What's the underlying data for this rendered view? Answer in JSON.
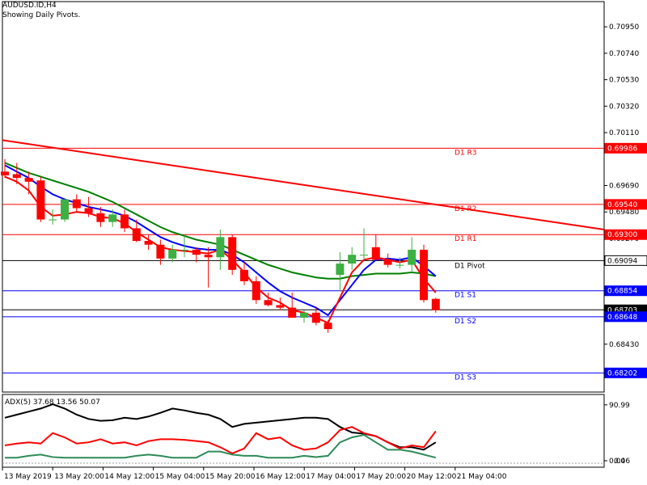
{
  "header": {
    "symbol": "AUDUSD.ID,H4",
    "subtitle": "Showing Daily Pivots."
  },
  "colors": {
    "bull": "#3cb043",
    "bear": "#ff0000",
    "ma_fast": "#ff0000",
    "ma_mid": "#0000ff",
    "ma_slow": "#008000",
    "pivot_resistance": "#ff0000",
    "pivot_support": "#0000ff",
    "pivot_center": "#000000",
    "trendline": "#ff0000",
    "adx_main": "#000000",
    "adx_plus": "#ff0000",
    "adx_minus": "#2e8b57"
  },
  "chart_data": [
    {
      "type": "candlestick",
      "price_axis": {
        "range": [
          0.6805,
          0.7115
        ],
        "ticks": [
          "0.70950",
          "0.70740",
          "0.70530",
          "0.70320",
          "0.70110",
          "0.69690",
          "0.69480",
          "0.69270",
          "0.68430"
        ]
      },
      "time_axis": {
        "labels": [
          "13 May 2019",
          "13 May 20:00",
          "14 May 12:00",
          "15 May 04:00",
          "15 May 20:00",
          "16 May 12:00",
          "17 May 04:00",
          "17 May 20:00",
          "20 May 12:00",
          "21 May 04:00"
        ]
      },
      "candles": [
        {
          "o": 0.698,
          "h": 0.699,
          "l": 0.6975,
          "c": 0.6977
        },
        {
          "o": 0.6978,
          "h": 0.6987,
          "l": 0.697,
          "c": 0.6975
        },
        {
          "o": 0.6975,
          "h": 0.698,
          "l": 0.6962,
          "c": 0.6972
        },
        {
          "o": 0.6973,
          "h": 0.6976,
          "l": 0.694,
          "c": 0.6942
        },
        {
          "o": 0.6942,
          "h": 0.695,
          "l": 0.6938,
          "c": 0.6942
        },
        {
          "o": 0.6942,
          "h": 0.6958,
          "l": 0.694,
          "c": 0.6958
        },
        {
          "o": 0.6958,
          "h": 0.6962,
          "l": 0.6948,
          "c": 0.6951
        },
        {
          "o": 0.6951,
          "h": 0.696,
          "l": 0.6944,
          "c": 0.6947
        },
        {
          "o": 0.6947,
          "h": 0.6952,
          "l": 0.6936,
          "c": 0.694
        },
        {
          "o": 0.694,
          "h": 0.695,
          "l": 0.6936,
          "c": 0.6946
        },
        {
          "o": 0.6946,
          "h": 0.695,
          "l": 0.6932,
          "c": 0.6935
        },
        {
          "o": 0.6935,
          "h": 0.6942,
          "l": 0.6924,
          "c": 0.6925
        },
        {
          "o": 0.6925,
          "h": 0.693,
          "l": 0.6918,
          "c": 0.6922
        },
        {
          "o": 0.6922,
          "h": 0.6926,
          "l": 0.6906,
          "c": 0.6911
        },
        {
          "o": 0.6911,
          "h": 0.6922,
          "l": 0.6908,
          "c": 0.6918
        },
        {
          "o": 0.6918,
          "h": 0.693,
          "l": 0.6912,
          "c": 0.6918
        },
        {
          "o": 0.6918,
          "h": 0.692,
          "l": 0.6908,
          "c": 0.6914
        },
        {
          "o": 0.6914,
          "h": 0.692,
          "l": 0.6888,
          "c": 0.6912
        },
        {
          "o": 0.6912,
          "h": 0.6934,
          "l": 0.6902,
          "c": 0.6928
        },
        {
          "o": 0.6928,
          "h": 0.693,
          "l": 0.6898,
          "c": 0.6902
        },
        {
          "o": 0.6902,
          "h": 0.6908,
          "l": 0.689,
          "c": 0.6893
        },
        {
          "o": 0.6893,
          "h": 0.6897,
          "l": 0.6875,
          "c": 0.6878
        },
        {
          "o": 0.6878,
          "h": 0.6884,
          "l": 0.6873,
          "c": 0.6874
        },
        {
          "o": 0.6874,
          "h": 0.688,
          "l": 0.687,
          "c": 0.6872
        },
        {
          "o": 0.6872,
          "h": 0.6884,
          "l": 0.6864,
          "c": 0.6864
        },
        {
          "o": 0.6864,
          "h": 0.687,
          "l": 0.686,
          "c": 0.6868
        },
        {
          "o": 0.6868,
          "h": 0.6872,
          "l": 0.6858,
          "c": 0.686
        },
        {
          "o": 0.686,
          "h": 0.6862,
          "l": 0.6852,
          "c": 0.6855
        },
        {
          "o": 0.6898,
          "h": 0.6916,
          "l": 0.6885,
          "c": 0.6907
        },
        {
          "o": 0.6907,
          "h": 0.692,
          "l": 0.6902,
          "c": 0.6914
        },
        {
          "o": 0.6914,
          "h": 0.6935,
          "l": 0.691,
          "c": 0.6914
        },
        {
          "o": 0.692,
          "h": 0.693,
          "l": 0.691,
          "c": 0.691
        },
        {
          "o": 0.691,
          "h": 0.6915,
          "l": 0.6904,
          "c": 0.6906
        },
        {
          "o": 0.6906,
          "h": 0.6912,
          "l": 0.6903,
          "c": 0.6906
        },
        {
          "o": 0.6906,
          "h": 0.6928,
          "l": 0.69,
          "c": 0.6918
        },
        {
          "o": 0.6918,
          "h": 0.6922,
          "l": 0.6876,
          "c": 0.6878
        },
        {
          "o": 0.6879,
          "h": 0.688,
          "l": 0.6868,
          "c": 0.687
        }
      ],
      "ma_fast": [
        0.6976,
        0.6972,
        0.6965,
        0.6952,
        0.6945,
        0.6946,
        0.6948,
        0.6947,
        0.6944,
        0.6943,
        0.6939,
        0.6932,
        0.6926,
        0.692,
        0.6918,
        0.6917,
        0.6916,
        0.6915,
        0.6918,
        0.691,
        0.69,
        0.6888,
        0.688,
        0.6876,
        0.687,
        0.6868,
        0.6864,
        0.686,
        0.688,
        0.69,
        0.691,
        0.6912,
        0.691,
        0.6908,
        0.691,
        0.6895,
        0.6884
      ],
      "ma_mid": [
        0.6985,
        0.698,
        0.6975,
        0.6968,
        0.6962,
        0.6958,
        0.6955,
        0.6952,
        0.695,
        0.6948,
        0.6945,
        0.694,
        0.6934,
        0.6928,
        0.6924,
        0.6921,
        0.6919,
        0.6918,
        0.6918,
        0.6914,
        0.6908,
        0.69,
        0.6892,
        0.6885,
        0.688,
        0.6876,
        0.6872,
        0.6866,
        0.6878,
        0.689,
        0.6902,
        0.691,
        0.6911,
        0.691,
        0.6912,
        0.6905,
        0.6897
      ],
      "ma_slow": [
        0.6987,
        0.6983,
        0.6979,
        0.6976,
        0.6973,
        0.697,
        0.6967,
        0.6964,
        0.696,
        0.6956,
        0.6951,
        0.6946,
        0.6941,
        0.6936,
        0.6932,
        0.6929,
        0.6926,
        0.6924,
        0.6922,
        0.6918,
        0.6914,
        0.691,
        0.6906,
        0.6903,
        0.69,
        0.6898,
        0.6896,
        0.6895,
        0.6895,
        0.6897,
        0.6898,
        0.6899,
        0.6899,
        0.6899,
        0.69,
        0.6899,
        0.6897
      ],
      "trendline": {
        "start": 0.7005,
        "end": 0.6934
      },
      "levels": [
        {
          "name": "D1 R3",
          "value": 0.69986,
          "label": "0.69986",
          "kind": "resistance"
        },
        {
          "name": "D1 R2",
          "value": 0.6954,
          "label": "0.69540",
          "kind": "resistance"
        },
        {
          "name": "D1 R1",
          "value": 0.693,
          "label": "0.69300",
          "kind": "resistance"
        },
        {
          "name": "D1 Pivot",
          "value": 0.69094,
          "label": "0.69094",
          "kind": "center"
        },
        {
          "name": "D1 S1",
          "value": 0.68854,
          "label": "0.68854",
          "kind": "support"
        },
        {
          "name": "",
          "value": 0.68703,
          "label": "0.68703",
          "kind": "current"
        },
        {
          "name": "D1 S2",
          "value": 0.68648,
          "label": "0.68648",
          "kind": "support"
        },
        {
          "name": "D1 S3",
          "value": 0.68202,
          "label": "0.68202",
          "kind": "support"
        }
      ]
    },
    {
      "type": "line",
      "title": "ADX(5) 37.68 13.56 50.07",
      "ylim": [
        0,
        100
      ],
      "ticks": [
        "90.99",
        "0.00",
        "0.46"
      ],
      "series": [
        {
          "name": "ADX",
          "values": [
            70,
            75,
            80,
            85,
            92,
            85,
            75,
            68,
            65,
            66,
            70,
            68,
            72,
            78,
            85,
            82,
            78,
            75,
            68,
            55,
            60,
            62,
            64,
            66,
            68,
            70,
            70,
            68,
            55,
            46,
            44,
            40,
            30,
            22,
            22,
            18,
            30
          ]
        },
        {
          "name": "+DI",
          "values": [
            25,
            28,
            30,
            28,
            45,
            38,
            28,
            30,
            35,
            28,
            30,
            25,
            32,
            35,
            35,
            34,
            32,
            30,
            22,
            12,
            20,
            45,
            35,
            38,
            25,
            18,
            20,
            30,
            50,
            55,
            45,
            40,
            30,
            20,
            25,
            22,
            48
          ]
        },
        {
          "name": "-DI",
          "values": [
            5,
            5,
            8,
            10,
            6,
            5,
            5,
            5,
            5,
            5,
            5,
            8,
            10,
            8,
            5,
            5,
            5,
            15,
            15,
            10,
            8,
            8,
            5,
            5,
            5,
            8,
            6,
            8,
            30,
            38,
            42,
            30,
            18,
            18,
            15,
            10,
            5
          ]
        }
      ]
    }
  ]
}
